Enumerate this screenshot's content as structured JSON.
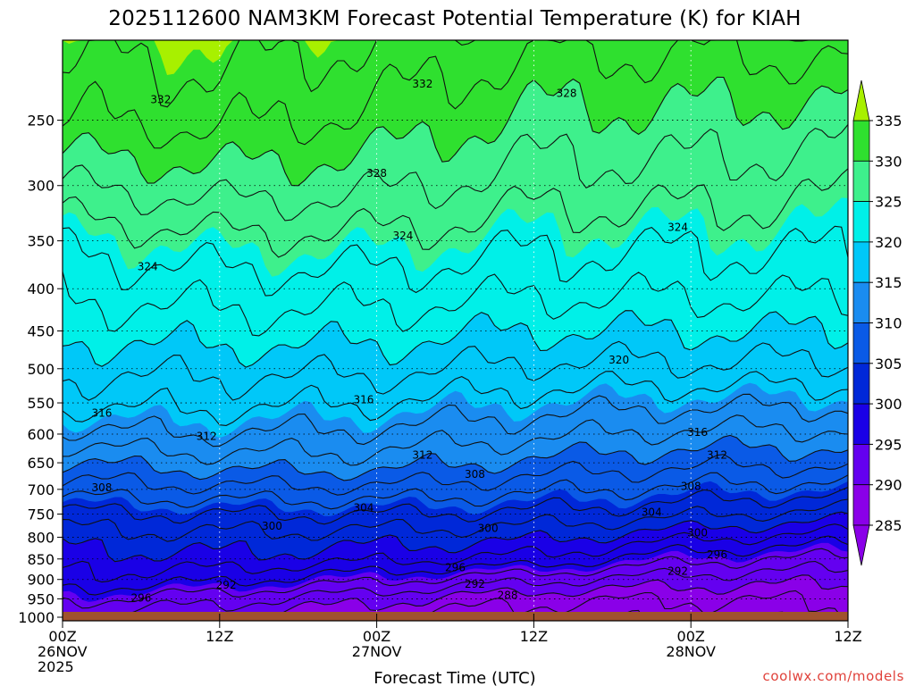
{
  "chart_data": {
    "type": "heatmap",
    "title": "2025112600 NAM3KM Forecast Potential Temperature (K) for KIAH",
    "xlabel": "Forecast Time (UTC)",
    "ylabel": "",
    "x_ticks": [
      {
        "lines": [
          "00Z",
          "26NOV",
          "2025"
        ]
      },
      {
        "lines": [
          "12Z"
        ]
      },
      {
        "lines": [
          "00Z",
          "27NOV"
        ]
      },
      {
        "lines": [
          "12Z"
        ]
      },
      {
        "lines": [
          "00Z",
          "28NOV"
        ]
      },
      {
        "lines": [
          "12Z"
        ]
      }
    ],
    "x_range_hours": [
      0,
      60
    ],
    "y_ticks": [
      250,
      300,
      350,
      400,
      450,
      500,
      550,
      600,
      650,
      700,
      750,
      800,
      850,
      900,
      950,
      1000
    ],
    "y_range_hpa": [
      200,
      1010
    ],
    "y_scale": "log",
    "y_reversed": true,
    "grid": true,
    "colorbar": {
      "ticks": [
        335,
        330,
        325,
        320,
        315,
        310,
        305,
        300,
        295,
        290,
        285
      ],
      "placement": "right"
    },
    "bands": [
      {
        "min": 280,
        "max": 285,
        "color": "#8a00e8"
      },
      {
        "min": 285,
        "max": 290,
        "color": "#8a00e8"
      },
      {
        "min": 290,
        "max": 295,
        "color": "#6400f0"
      },
      {
        "min": 295,
        "max": 300,
        "color": "#1a00e6"
      },
      {
        "min": 300,
        "max": 305,
        "color": "#0028d8"
      },
      {
        "min": 305,
        "max": 310,
        "color": "#0a5ae6"
      },
      {
        "min": 310,
        "max": 315,
        "color": "#1a8cf0"
      },
      {
        "min": 315,
        "max": 320,
        "color": "#00c8f8"
      },
      {
        "min": 320,
        "max": 325,
        "color": "#00f0e8"
      },
      {
        "min": 325,
        "max": 330,
        "color": "#3ef08c"
      },
      {
        "min": 330,
        "max": 335,
        "color": "#2fe02f"
      },
      {
        "min": 335,
        "max": 345,
        "color": "#a8f000"
      }
    ],
    "theta_profile": {
      "pressure_hpa": [
        1000,
        950,
        900,
        850,
        800,
        750,
        700,
        650,
        600,
        550,
        500,
        450,
        400,
        350,
        300,
        250,
        200
      ],
      "theta_by_time": [
        {
          "hour": 0,
          "theta_k": [
            291.5,
            294.5,
            297.5,
            299,
            301,
            303.5,
            307,
            310,
            313.5,
            316.5,
            318.5,
            320.5,
            322.5,
            324.5,
            328,
            332,
            334.5
          ]
        },
        {
          "hour": 12,
          "theta_k": [
            290,
            292.8,
            296.5,
            299.5,
            301.5,
            304,
            307.5,
            311,
            314,
            316.5,
            318.5,
            321,
            323,
            325.5,
            329,
            332.5,
            335
          ]
        },
        {
          "hour": 24,
          "theta_k": [
            288,
            290.5,
            294.5,
            298.5,
            301,
            304,
            307.5,
            311,
            313.5,
            316,
            318.5,
            320.8,
            323,
            325.5,
            328.5,
            331.5,
            334
          ]
        },
        {
          "hour": 36,
          "theta_k": [
            286.5,
            288.5,
            292.5,
            297.5,
            300.5,
            303.5,
            306.5,
            309.5,
            312.5,
            315,
            317.5,
            320,
            322.5,
            324.5,
            327,
            329.5,
            332.5
          ]
        },
        {
          "hour": 48,
          "theta_k": [
            286.5,
            288,
            291,
            294.5,
            298.5,
            302.5,
            305.5,
            308.5,
            311.5,
            314.5,
            317.5,
            320,
            322.5,
            324.5,
            327,
            329.5,
            332.5
          ]
        },
        {
          "hour": 60,
          "theta_k": [
            287,
            288.5,
            290.5,
            293.5,
            297,
            301,
            305,
            308.5,
            311.5,
            314.5,
            317.5,
            320,
            322.5,
            324.5,
            326.5,
            329,
            333
          ]
        }
      ]
    },
    "contour_interval_k": 2,
    "contour_labels": [
      {
        "text": "332",
        "hour": 7.5,
        "hpa": 236
      },
      {
        "text": "332",
        "hour": 27.5,
        "hpa": 226
      },
      {
        "text": "328",
        "hour": 38.5,
        "hpa": 232
      },
      {
        "text": "328",
        "hour": 24,
        "hpa": 290
      },
      {
        "text": "324",
        "hour": 6.5,
        "hpa": 376
      },
      {
        "text": "324",
        "hour": 26,
        "hpa": 345
      },
      {
        "text": "324",
        "hour": 47,
        "hpa": 337
      },
      {
        "text": "320",
        "hour": 42.5,
        "hpa": 488
      },
      {
        "text": "316",
        "hour": 3,
        "hpa": 566
      },
      {
        "text": "316",
        "hour": 23,
        "hpa": 545
      },
      {
        "text": "316",
        "hour": 48.5,
        "hpa": 597
      },
      {
        "text": "312",
        "hour": 11,
        "hpa": 604
      },
      {
        "text": "312",
        "hour": 27.5,
        "hpa": 636
      },
      {
        "text": "312",
        "hour": 50,
        "hpa": 636
      },
      {
        "text": "308",
        "hour": 3,
        "hpa": 697
      },
      {
        "text": "308",
        "hour": 31.5,
        "hpa": 671
      },
      {
        "text": "308",
        "hour": 48,
        "hpa": 694
      },
      {
        "text": "304",
        "hour": 23,
        "hpa": 737
      },
      {
        "text": "304",
        "hour": 45,
        "hpa": 746
      },
      {
        "text": "300",
        "hour": 16,
        "hpa": 776
      },
      {
        "text": "300",
        "hour": 32.5,
        "hpa": 780
      },
      {
        "text": "300",
        "hour": 48.5,
        "hpa": 790
      },
      {
        "text": "296",
        "hour": 30,
        "hpa": 871
      },
      {
        "text": "296",
        "hour": 50,
        "hpa": 840
      },
      {
        "text": "296",
        "hour": 6,
        "hpa": 948
      },
      {
        "text": "292",
        "hour": 12.5,
        "hpa": 914
      },
      {
        "text": "292",
        "hour": 31.5,
        "hpa": 912
      },
      {
        "text": "292",
        "hour": 47,
        "hpa": 880
      },
      {
        "text": "288",
        "hour": 34,
        "hpa": 941
      }
    ],
    "ground_color": "#a0522d"
  },
  "credit": "coolwx.com/models"
}
